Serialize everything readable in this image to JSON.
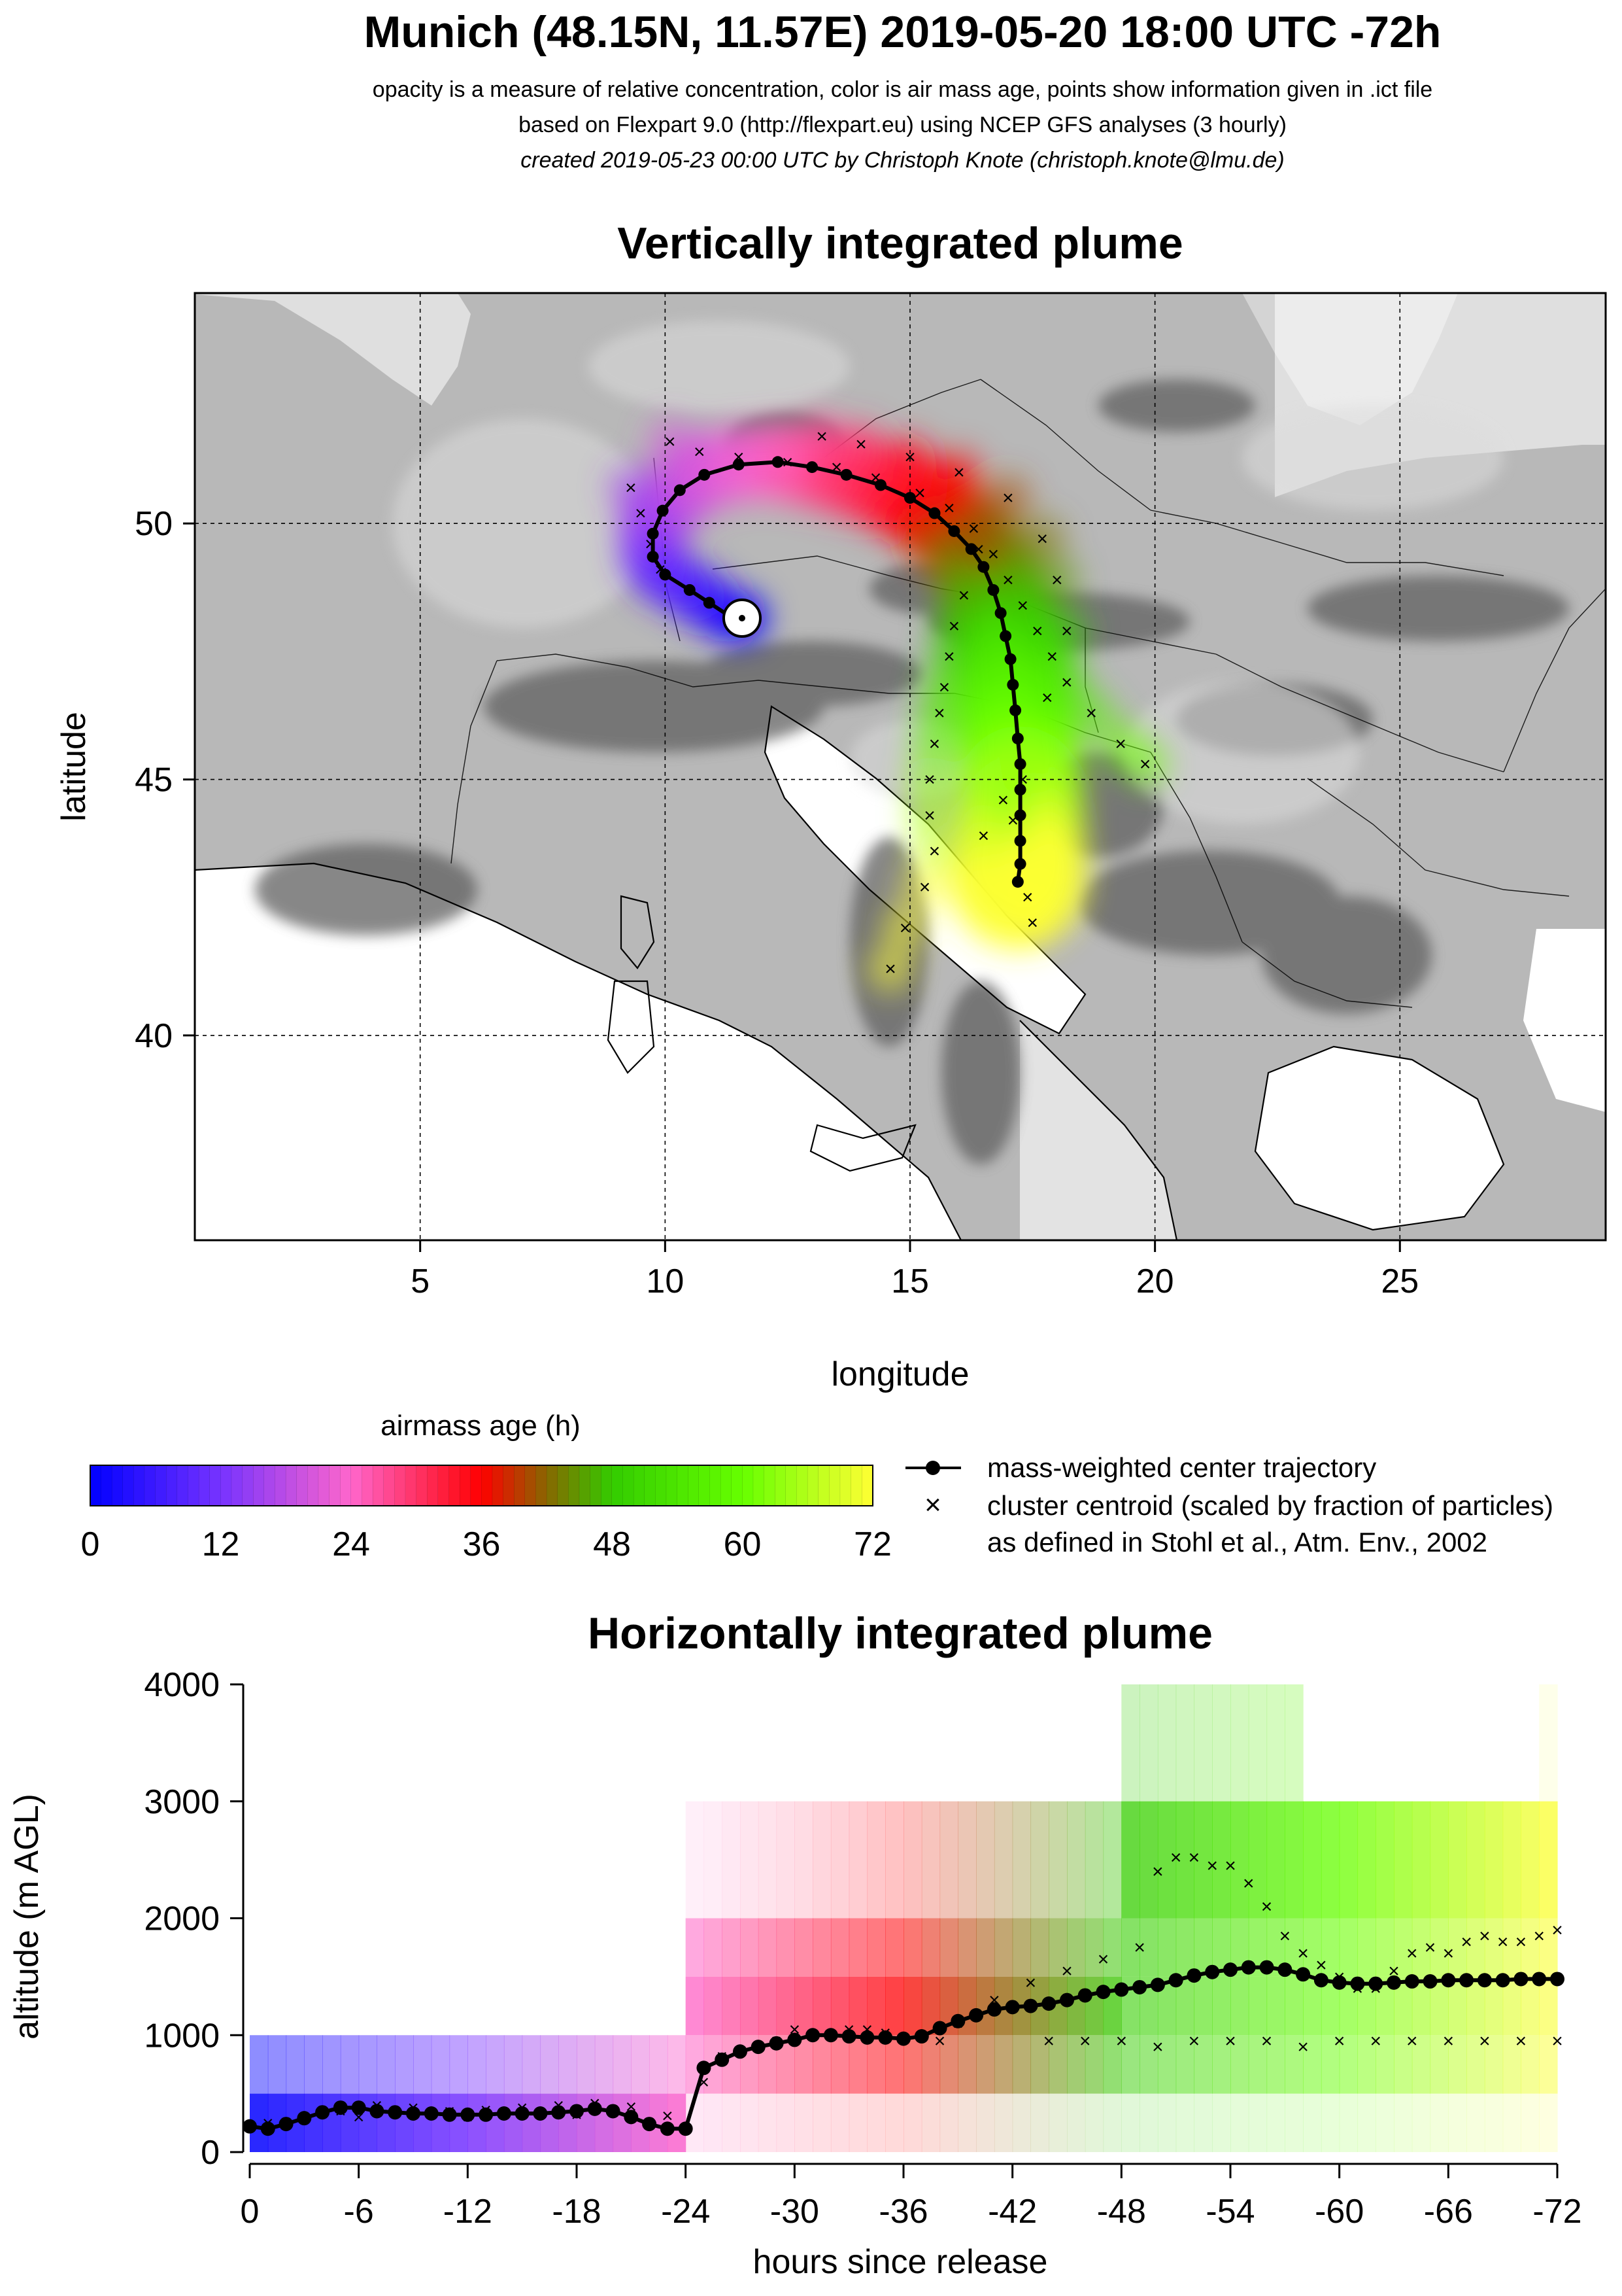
{
  "header": {
    "title": "Munich (48.15N, 11.57E) 2019-05-20 18:00 UTC -72h",
    "line1": "opacity is a measure of relative concentration, color is air mass age, points show information given in .ict file",
    "line2": "based on Flexpart 9.0 (http://flexpart.eu) using NCEP GFS analyses (3 hourly)",
    "line3": "created 2019-05-23 00:00 UTC by Christoph Knote (christoph.knote@lmu.de)"
  },
  "colors": {
    "age_0": "#0000ff",
    "age_24": "#ff66cc",
    "age_36": "#ff0000",
    "age_48": "#33cc00",
    "age_60": "#66ff00",
    "age_72": "#ffff33",
    "terrain": "#9a9a9a"
  },
  "chart_data": [
    {
      "type": "scatter",
      "title": "Vertically integrated plume",
      "xlabel": "longitude",
      "ylabel": "latitude",
      "xlim": [
        0.4,
        29.2
      ],
      "ylim": [
        36.0,
        54.5
      ],
      "xticks": [
        "5",
        "10",
        "15",
        "20",
        "25"
      ],
      "yticks": [
        "40",
        "45",
        "50"
      ],
      "grid": true,
      "release_point": {
        "lon": 11.57,
        "lat": 48.15
      },
      "series": [
        {
          "name": "mass-weighted center trajectory",
          "points": [
            [
              11.57,
              48.15
            ],
            [
              11.3,
              48.2
            ],
            [
              10.9,
              48.45
            ],
            [
              10.5,
              48.7
            ],
            [
              10.0,
              49.0
            ],
            [
              9.75,
              49.35
            ],
            [
              9.75,
              49.8
            ],
            [
              9.95,
              50.25
            ],
            [
              10.3,
              50.65
            ],
            [
              10.8,
              50.95
            ],
            [
              11.5,
              51.15
            ],
            [
              12.3,
              51.2
            ],
            [
              13.0,
              51.1
            ],
            [
              13.7,
              50.95
            ],
            [
              14.4,
              50.75
            ],
            [
              15.0,
              50.5
            ],
            [
              15.5,
              50.2
            ],
            [
              15.9,
              49.85
            ],
            [
              16.25,
              49.5
            ],
            [
              16.5,
              49.15
            ],
            [
              16.7,
              48.7
            ],
            [
              16.85,
              48.25
            ],
            [
              16.95,
              47.8
            ],
            [
              17.05,
              47.35
            ],
            [
              17.1,
              46.85
            ],
            [
              17.15,
              46.35
            ],
            [
              17.2,
              45.8
            ],
            [
              17.25,
              45.3
            ],
            [
              17.25,
              44.8
            ],
            [
              17.25,
              44.3
            ],
            [
              17.25,
              43.8
            ],
            [
              17.25,
              43.35
            ],
            [
              17.2,
              43.0
            ]
          ]
        },
        {
          "name": "cluster centroid (scaled by fraction of particles)",
          "points": [
            [
              9.3,
              50.7
            ],
            [
              9.5,
              50.2
            ],
            [
              9.7,
              49.6
            ],
            [
              9.9,
              49.1
            ],
            [
              10.1,
              51.6
            ],
            [
              10.7,
              51.4
            ],
            [
              11.5,
              51.3
            ],
            [
              12.5,
              51.2
            ],
            [
              13.5,
              51.1
            ],
            [
              14.3,
              50.9
            ],
            [
              15.2,
              50.6
            ],
            [
              15.8,
              50.3
            ],
            [
              16.3,
              49.9
            ],
            [
              16.7,
              49.4
            ],
            [
              17.0,
              48.9
            ],
            [
              17.3,
              48.4
            ],
            [
              17.6,
              47.9
            ],
            [
              17.9,
              47.4
            ],
            [
              18.2,
              46.9
            ],
            [
              18.7,
              46.3
            ],
            [
              19.3,
              45.7
            ],
            [
              19.8,
              45.3
            ],
            [
              16.4,
              49.5
            ],
            [
              16.1,
              48.6
            ],
            [
              15.9,
              48.0
            ],
            [
              15.8,
              47.4
            ],
            [
              15.7,
              46.8
            ],
            [
              15.6,
              46.3
            ],
            [
              15.5,
              45.7
            ],
            [
              15.4,
              45.0
            ],
            [
              15.4,
              44.3
            ],
            [
              15.5,
              43.6
            ],
            [
              15.3,
              42.9
            ],
            [
              14.9,
              42.1
            ],
            [
              14.6,
              41.3
            ],
            [
              13.2,
              51.7
            ],
            [
              14.0,
              51.55
            ],
            [
              15.0,
              51.3
            ],
            [
              16.0,
              51.0
            ],
            [
              17.0,
              50.5
            ],
            [
              17.7,
              49.7
            ],
            [
              18.0,
              48.9
            ],
            [
              18.2,
              47.9
            ],
            [
              17.8,
              46.6
            ],
            [
              17.3,
              45.0
            ],
            [
              17.1,
              44.2
            ],
            [
              17.4,
              42.7
            ],
            [
              17.5,
              42.2
            ],
            [
              16.9,
              44.6
            ],
            [
              16.5,
              43.9
            ]
          ]
        }
      ]
    },
    {
      "type": "heatmap",
      "title": "Horizontally integrated plume",
      "xlabel": "hours since release",
      "ylabel": "altitude (m AGL)",
      "xlim": [
        0,
        -72
      ],
      "ylim": [
        0,
        4000
      ],
      "xticks": [
        "0",
        "-6",
        "-12",
        "-18",
        "-24",
        "-30",
        "-36",
        "-42",
        "-48",
        "-54",
        "-60",
        "-66",
        "-72"
      ],
      "yticks": [
        "0",
        "1000",
        "2000",
        "3000",
        "4000"
      ],
      "series": [
        {
          "name": "mass-weighted center trajectory",
          "x": [
            0,
            -1,
            -2,
            -3,
            -4,
            -5,
            -6,
            -7,
            -8,
            -9,
            -10,
            -11,
            -12,
            -13,
            -14,
            -15,
            -16,
            -17,
            -18,
            -19,
            -20,
            -21,
            -22,
            -23,
            -24,
            -25,
            -26,
            -27,
            -28,
            -29,
            -30,
            -31,
            -32,
            -33,
            -34,
            -35,
            -36,
            -37,
            -38,
            -39,
            -40,
            -41,
            -42,
            -43,
            -44,
            -45,
            -46,
            -47,
            -48,
            -49,
            -50,
            -51,
            -52,
            -53,
            -54,
            -55,
            -56,
            -57,
            -58,
            -59,
            -60,
            -61,
            -62,
            -63,
            -64,
            -65,
            -66,
            -67,
            -68,
            -69,
            -70,
            -71,
            -72
          ],
          "y": [
            220,
            200,
            240,
            290,
            340,
            380,
            380,
            350,
            340,
            330,
            330,
            320,
            320,
            320,
            330,
            330,
            330,
            340,
            350,
            370,
            350,
            300,
            240,
            200,
            200,
            720,
            790,
            860,
            900,
            930,
            960,
            1000,
            1000,
            990,
            980,
            980,
            970,
            990,
            1060,
            1120,
            1170,
            1220,
            1240,
            1250,
            1270,
            1300,
            1340,
            1370,
            1390,
            1410,
            1430,
            1470,
            1510,
            1540,
            1560,
            1580,
            1580,
            1560,
            1520,
            1470,
            1450,
            1440,
            1440,
            1450,
            1460,
            1460,
            1470,
            1470,
            1470,
            1470,
            1480,
            1480,
            1480
          ]
        },
        {
          "name": "cluster centroid (scaled by fraction of particles)",
          "x": [
            -1,
            -3,
            -5,
            -7,
            -9,
            -11,
            -13,
            -15,
            -17,
            -19,
            -21,
            -23,
            -25,
            -27,
            -29,
            -31,
            -33,
            -35,
            -37,
            -39,
            -41,
            -43,
            -45,
            -47,
            -49,
            -50,
            -51,
            -52,
            -53,
            -54,
            -55,
            -56,
            -57,
            -58,
            -59,
            -60,
            -61,
            -62,
            -63,
            -64,
            -65,
            -66,
            -67,
            -68,
            -69,
            -70,
            -71,
            -72,
            -44,
            -46,
            -48,
            -50,
            -52,
            -54,
            -56,
            -58,
            -60,
            -62,
            -64,
            -66,
            -68,
            -70,
            -72,
            -6,
            -12,
            -18,
            -26,
            -30,
            -34,
            -38
          ],
          "y": [
            250,
            300,
            350,
            400,
            380,
            350,
            360,
            380,
            400,
            420,
            390,
            310,
            600,
            850,
            950,
            1000,
            1050,
            1020,
            1000,
            1100,
            1300,
            1450,
            1550,
            1650,
            1750,
            2400,
            2520,
            2520,
            2450,
            2450,
            2300,
            2100,
            1850,
            1700,
            1600,
            1500,
            1400,
            1400,
            1550,
            1700,
            1750,
            1700,
            1800,
            1850,
            1800,
            1800,
            1850,
            1900,
            950,
            950,
            950,
            900,
            950,
            950,
            950,
            900,
            950,
            950,
            950,
            950,
            950,
            950,
            950,
            300,
            300,
            320,
            820,
            1050,
            1050,
            950
          ]
        }
      ]
    }
  ],
  "colorbar": {
    "title": "airmass age (h)",
    "ticks": [
      "0",
      "12",
      "24",
      "36",
      "48",
      "60",
      "72"
    ]
  },
  "legend": {
    "center": "mass-weighted center trajectory",
    "cluster_line1": "cluster centroid (scaled by fraction of particles)",
    "cluster_line2": "as defined in Stohl et al., Atm. Env., 2002"
  }
}
